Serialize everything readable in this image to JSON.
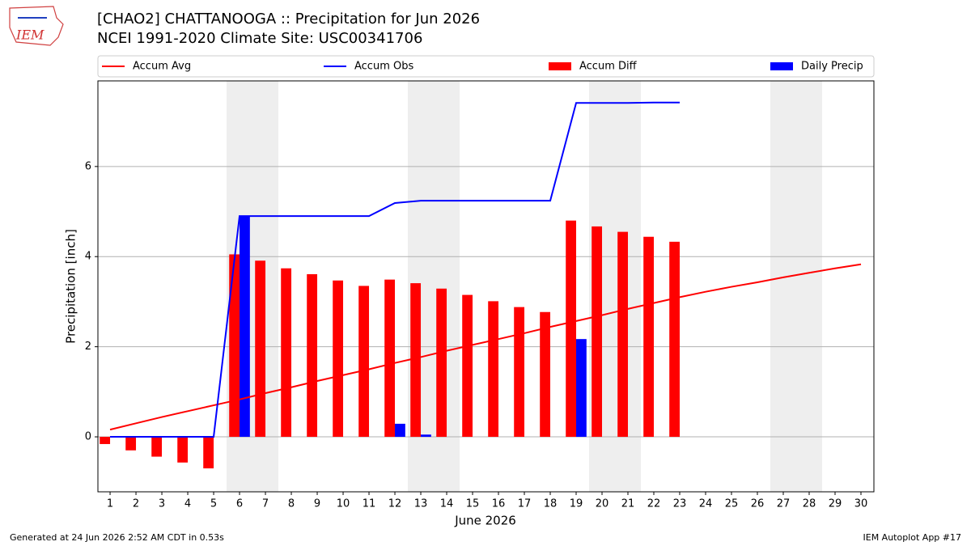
{
  "logo": "IEM",
  "footer_left": "Generated at 24 Jun 2026 2:52 AM CDT in 0.53s",
  "footer_right": "IEM Autoplot App #17",
  "chart_data": {
    "type": "bar_line",
    "title": "[CHAO2] CHATTANOOGA :: Precipitation for Jun 2026",
    "subtitle": "NCEI 1991-2020 Climate Site: USC00341706",
    "x_label": "June 2026",
    "y_label": "Precipitation [inch]",
    "x": [
      1,
      2,
      3,
      4,
      5,
      6,
      7,
      8,
      9,
      10,
      11,
      12,
      13,
      14,
      15,
      16,
      17,
      18,
      19,
      20,
      21,
      22,
      23,
      24,
      25,
      26,
      27,
      28,
      29,
      30
    ],
    "xlim": [
      0.53,
      30.5
    ],
    "xticks": [
      1,
      2,
      3,
      4,
      5,
      6,
      7,
      8,
      9,
      10,
      11,
      12,
      13,
      14,
      15,
      16,
      17,
      18,
      19,
      20,
      21,
      22,
      23,
      24,
      25,
      26,
      27,
      28,
      29,
      30
    ],
    "ylim": [
      -1.22,
      7.9
    ],
    "yticks": [
      0,
      2,
      4,
      6
    ],
    "grid": true,
    "shading": [
      [
        5.5,
        7.5
      ],
      [
        12.5,
        14.5
      ],
      [
        19.5,
        21.5
      ],
      [
        26.5,
        28.5
      ]
    ],
    "series": [
      {
        "name": "Accum Avg",
        "kind": "line",
        "color": "#ff0000",
        "values": [
          0.16,
          0.3,
          0.44,
          0.57,
          0.7,
          0.83,
          0.97,
          1.1,
          1.24,
          1.37,
          1.5,
          1.64,
          1.77,
          1.91,
          2.04,
          2.17,
          2.3,
          2.44,
          2.57,
          2.7,
          2.84,
          2.97,
          3.1,
          3.22,
          3.33,
          3.43,
          3.54,
          3.64,
          3.74,
          3.83
        ]
      },
      {
        "name": "Accum Obs",
        "kind": "line",
        "color": "#0000ff",
        "values": [
          0,
          0,
          0,
          0,
          0,
          4.9,
          4.9,
          4.9,
          4.9,
          4.9,
          4.9,
          5.19,
          5.24,
          5.24,
          5.24,
          5.24,
          5.24,
          5.24,
          7.41,
          7.41,
          7.41,
          7.42,
          7.42,
          null,
          null,
          null,
          null,
          null,
          null,
          null
        ]
      },
      {
        "name": "Accum Diff",
        "kind": "bar",
        "side": "left",
        "color": "#ff0000",
        "values": [
          -0.16,
          -0.3,
          -0.44,
          -0.57,
          -0.7,
          4.05,
          3.91,
          3.74,
          3.61,
          3.47,
          3.35,
          3.49,
          3.41,
          3.29,
          3.15,
          3.01,
          2.88,
          2.77,
          4.8,
          4.67,
          4.55,
          4.44,
          4.33,
          null,
          null,
          null,
          null,
          null,
          null,
          null
        ]
      },
      {
        "name": "Daily Precip",
        "kind": "bar",
        "side": "right",
        "color": "#0000ff",
        "values": [
          0,
          0,
          0,
          0,
          0,
          4.9,
          0,
          0,
          0,
          0,
          0,
          0.29,
          0.05,
          0,
          0,
          0,
          0,
          0,
          2.17,
          0,
          0,
          0,
          0,
          null,
          null,
          null,
          null,
          null,
          null,
          null
        ]
      }
    ]
  }
}
